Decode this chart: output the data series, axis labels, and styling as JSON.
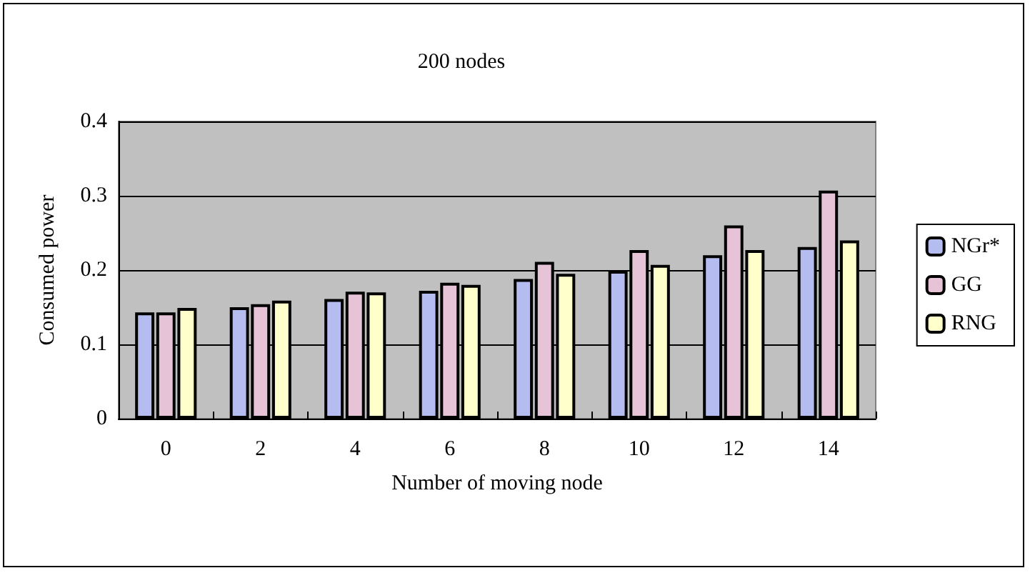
{
  "chart_data": {
    "type": "bar",
    "title": "200 nodes",
    "xlabel": "Number of moving node",
    "ylabel": "Consumed power",
    "categories": [
      "0",
      "2",
      "4",
      "6",
      "8",
      "10",
      "12",
      "14"
    ],
    "series": [
      {
        "name": "NGr*",
        "color": "#b4bcf0",
        "values": [
          0.143,
          0.15,
          0.161,
          0.172,
          0.188,
          0.199,
          0.22,
          0.231
        ]
      },
      {
        "name": "GG",
        "color": "#e6c3d6",
        "values": [
          0.143,
          0.154,
          0.171,
          0.183,
          0.211,
          0.227,
          0.26,
          0.307
        ]
      },
      {
        "name": "RNG",
        "color": "#ffffcc",
        "values": [
          0.149,
          0.159,
          0.17,
          0.18,
          0.195,
          0.207,
          0.227,
          0.24
        ]
      }
    ],
    "ylim": [
      0,
      0.4
    ],
    "yticks": [
      0,
      0.1,
      0.2,
      0.3,
      0.4
    ],
    "grid": "y",
    "legend": "right"
  }
}
